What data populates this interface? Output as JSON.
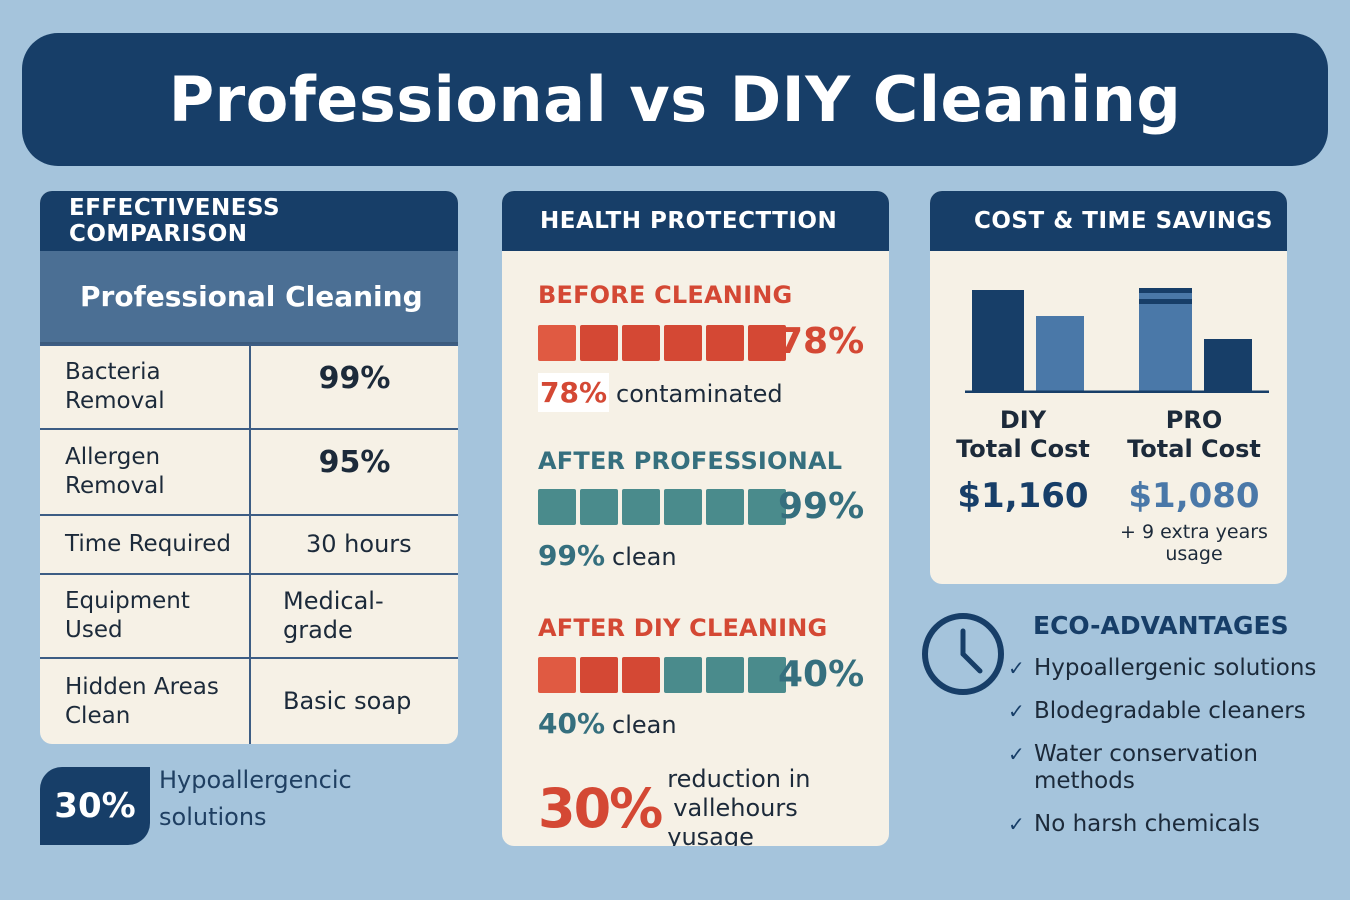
{
  "title": "Professional vs DIY Cleaning",
  "colors": {
    "navy": "#173e68",
    "red": "#d44834",
    "red_light": "#e05a42",
    "teal": "#4a8b8c"
  },
  "effectiveness": {
    "heading": "EFFECTIVENESS COMPARISON",
    "subheading": "Professional Cleaning",
    "rows": [
      {
        "label": "Bacteria Removal",
        "value": "99%"
      },
      {
        "label": "Allergen Removal",
        "value": "95%"
      },
      {
        "label": "Time Required",
        "value": "30 hours"
      },
      {
        "label": "Equipment Used",
        "value": "Medical-grade"
      },
      {
        "label": "Hidden Areas Clean",
        "value": "Basic soap"
      }
    ]
  },
  "badge": {
    "value": "30%",
    "text": "Hypoallergencic solutions"
  },
  "health": {
    "heading": "HEALTH PROTECTTION",
    "sections": [
      {
        "title": "BEFORE CLEANING",
        "pct": "78%",
        "bar_colors": [
          "red_light",
          "red",
          "red",
          "red",
          "red",
          "red"
        ],
        "line_pct": "78%",
        "line_text": "contaminated",
        "theme": "red"
      },
      {
        "title": "AFTER PROFESSIONAL",
        "pct": "99%",
        "bar_colors": [
          "teal",
          "teal",
          "teal",
          "teal",
          "teal",
          "teal"
        ],
        "line_pct": "99%",
        "line_text": "clean",
        "theme": "teal"
      },
      {
        "title": "AFTER DIY CLEANING",
        "pct": "40%",
        "bar_colors": [
          "red_light",
          "red",
          "red",
          "teal",
          "teal",
          "teal"
        ],
        "line_pct": "40%",
        "line_text": "clean",
        "theme": "mixed"
      }
    ],
    "footer": {
      "pct": "30%",
      "text_line1": "reduction in",
      "text_line2": "vallehours yusage"
    }
  },
  "cost": {
    "heading": "COST & TIME SAVINGS",
    "diy": {
      "label_line1": "DIY",
      "label_line2": "Total Cost",
      "value": "$1,160"
    },
    "pro": {
      "label_line1": "PRO",
      "label_line2": "Total Cost",
      "value": "$1,080",
      "note_line1": "+ 9 extra years",
      "note_line2": "usage"
    }
  },
  "eco": {
    "title": "ECO-ADVANTAGES",
    "items": [
      "Hypoallergenic solutions",
      "Blodegradable cleaners",
      "Water conservation methods",
      "No harsh chemicals"
    ]
  }
}
